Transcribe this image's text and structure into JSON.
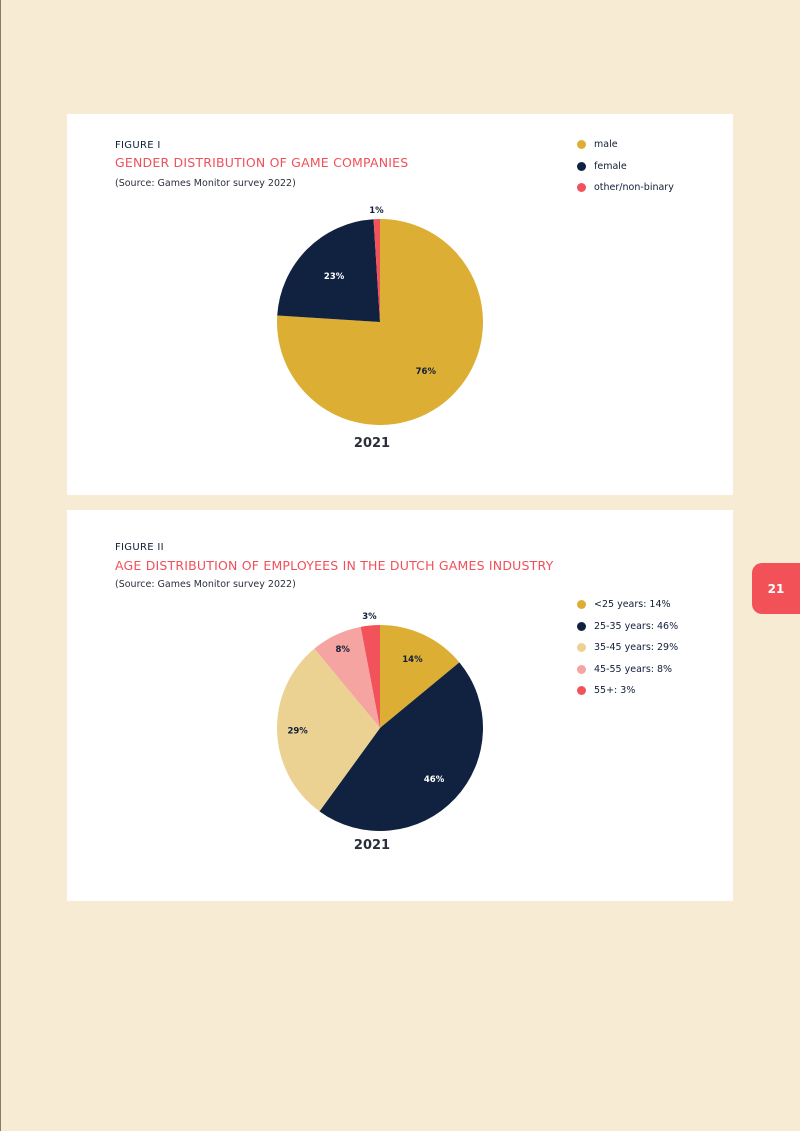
{
  "page_number": "21",
  "figures": [
    {
      "label": "FIGURE I",
      "title": "GENDER DISTRIBUTION OF GAME COMPANIES",
      "source": "(Source: Games Monitor survey 2022)",
      "legend": [
        {
          "label": "male",
          "color": "#dcae33"
        },
        {
          "label": "female",
          "color": "#10223f"
        },
        {
          "label": "other/non-binary",
          "color": "#f2525a"
        }
      ]
    },
    {
      "label": "FIGURE II",
      "title": "AGE DISTRIBUTION OF EMPLOYEES IN THE DUTCH GAMES INDUSTRY",
      "source": "(Source: Games Monitor survey 2022)",
      "legend": [
        {
          "label": "<25 years: 14%",
          "color": "#dcae33"
        },
        {
          "label": "25-35 years: 46%",
          "color": "#10223f"
        },
        {
          "label": "35-45 years: 29%",
          "color": "#ecd292"
        },
        {
          "label": "45-55 years: 8%",
          "color": "#f6a4a2"
        },
        {
          "label": "55+: 3%",
          "color": "#f2525a"
        }
      ]
    }
  ],
  "chart_data": [
    {
      "type": "pie",
      "title": "GENDER DISTRIBUTION OF GAME COMPANIES",
      "xlabel": "2021",
      "categories": [
        "male",
        "female",
        "other/non-binary"
      ],
      "values": [
        76,
        23,
        1
      ],
      "data_labels": [
        "76%",
        "23%",
        "1%"
      ],
      "colors": [
        "#dcae33",
        "#10223f",
        "#f2525a"
      ],
      "legend": "top-right"
    },
    {
      "type": "pie",
      "title": "AGE DISTRIBUTION OF EMPLOYEES IN THE DUTCH GAMES INDUSTRY",
      "xlabel": "2021",
      "categories": [
        "<25 years",
        "25-35 years",
        "35-45 years",
        "45-55 years",
        "55+"
      ],
      "values": [
        14,
        46,
        29,
        8,
        3
      ],
      "data_labels": [
        "14%",
        "46%",
        "29%",
        "8%",
        "3%"
      ],
      "colors": [
        "#dcae33",
        "#10223f",
        "#ecd292",
        "#f6a4a2",
        "#f2525a"
      ],
      "legend": "right"
    }
  ]
}
